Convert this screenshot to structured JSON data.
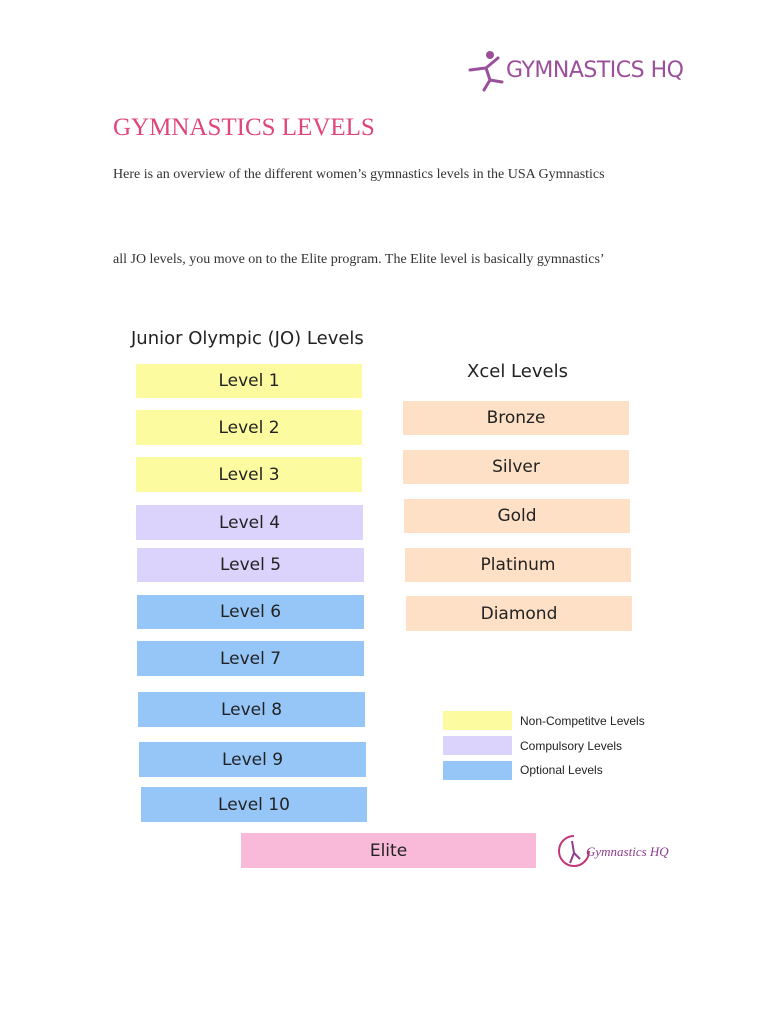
{
  "header": {
    "logo": "GYMNASTICS HQ"
  },
  "title": "GYMNASTICS LEVELS",
  "paragraphs": [
    "Here is an overview of the different women’s gymnastics levels in the USA Gymnastics",
    "all JO levels, you move on to the Elite program. The Elite level is basically gymnastics’"
  ],
  "diagram": {
    "jo_title": "Junior Olympic (JO) Levels",
    "jo_levels": [
      "Level 1",
      "Level 2",
      "Level 3",
      "Level 4",
      "Level 5",
      "Level 6",
      "Level 7",
      "Level 8",
      "Level 9",
      "Level 10"
    ],
    "xcel_title": "Xcel Levels",
    "xcel_levels": [
      "Bronze",
      "Silver",
      "Gold",
      "Platinum",
      "Diamond"
    ],
    "legend": [
      "Non-Competitve Levels",
      "Compulsory Levels",
      "Optional Levels"
    ],
    "elite": "Elite",
    "logo": "Gymnastics HQ"
  }
}
